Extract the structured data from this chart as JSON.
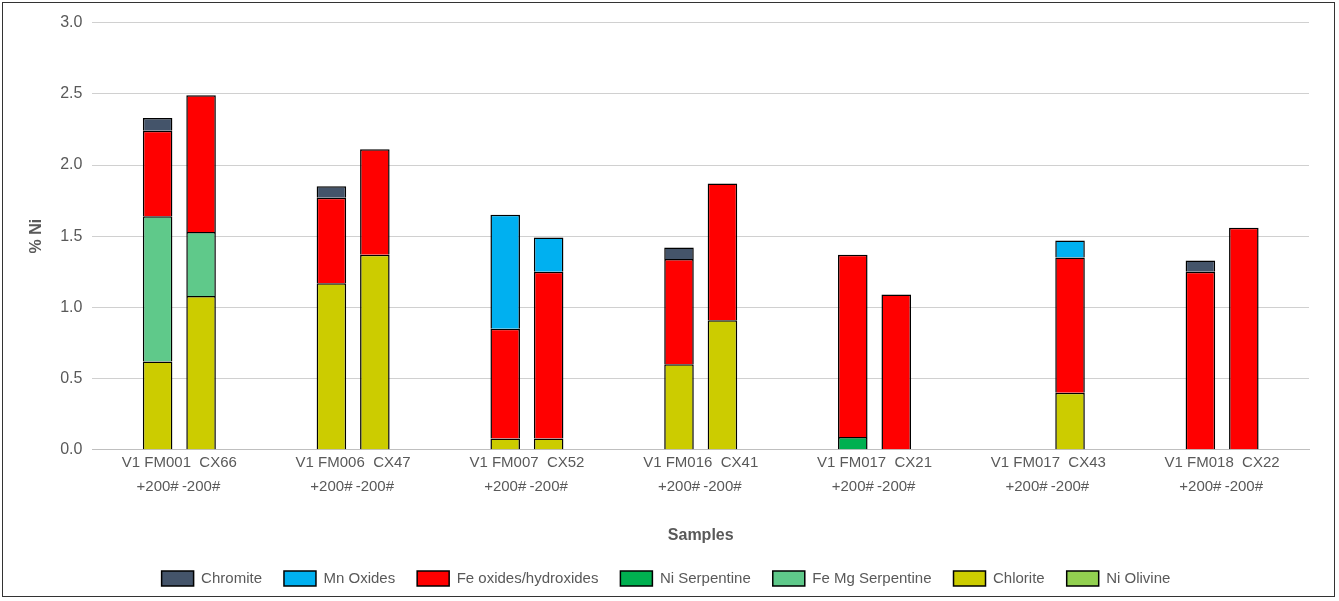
{
  "chart_data": {
    "type": "bar",
    "stacked": true,
    "xlabel": "Samples",
    "ylabel": "% Ni",
    "categories": [
      null,
      "+200#",
      "-200#",
      null,
      null,
      "+200#",
      "-200#",
      null,
      null,
      "+200#",
      "-200#",
      null,
      null,
      "+200#",
      "-200#",
      null,
      null,
      "+200#",
      "-200#",
      null,
      null,
      "+200#",
      "-200#",
      null,
      null,
      "+200#",
      "-200#",
      null
    ],
    "series": [
      {
        "name": "Ni Olivine",
        "color": "#92d050",
        "values": [
          null,
          null,
          null,
          null,
          null,
          null,
          null,
          null,
          null,
          null,
          null,
          null,
          null,
          null,
          null,
          null,
          null,
          null,
          null,
          null,
          null,
          null,
          null,
          null,
          null,
          null,
          null,
          null
        ]
      },
      {
        "name": "Chlorite",
        "color": "#cccc00",
        "values": [
          null,
          0.62,
          1.08,
          null,
          null,
          1.17,
          1.37,
          null,
          null,
          0.08,
          0.08,
          null,
          null,
          0.6,
          0.91,
          null,
          null,
          null,
          null,
          null,
          null,
          null,
          0.4,
          null,
          null,
          null,
          null,
          null
        ]
      },
      {
        "name": "Fe Mg Serpentine",
        "color": "#5fc98a",
        "values": [
          null,
          1.02,
          0.45,
          null,
          null,
          null,
          null,
          null,
          null,
          null,
          null,
          null,
          null,
          null,
          null,
          null,
          null,
          null,
          null,
          null,
          null,
          null,
          null,
          null,
          null,
          null,
          null,
          null
        ]
      },
      {
        "name": "Ni Serpentine",
        "color": "#00b050",
        "values": [
          null,
          null,
          null,
          null,
          null,
          null,
          null,
          null,
          null,
          null,
          null,
          null,
          null,
          null,
          null,
          null,
          null,
          0.09,
          null,
          null,
          null,
          null,
          null,
          null,
          null,
          null,
          null,
          null
        ]
      },
      {
        "name": "Fe oxides/hydroxides",
        "color": "#ff0000",
        "values": [
          null,
          0.6,
          0.96,
          null,
          null,
          0.6,
          0.74,
          null,
          null,
          0.77,
          1.17,
          null,
          null,
          0.74,
          0.96,
          null,
          null,
          1.28,
          1.09,
          null,
          null,
          null,
          0.95,
          null,
          null,
          1.25,
          1.56,
          null
        ]
      },
      {
        "name": "Mn Oxides",
        "color": "#00b0f0",
        "values": [
          null,
          null,
          null,
          null,
          null,
          null,
          null,
          null,
          null,
          0.8,
          0.24,
          null,
          null,
          null,
          null,
          null,
          null,
          null,
          null,
          null,
          null,
          null,
          0.12,
          null,
          null,
          null,
          null,
          null
        ]
      },
      {
        "name": "Chromite",
        "color": "#44546a",
        "values": [
          null,
          0.09,
          null,
          null,
          null,
          0.08,
          null,
          null,
          null,
          null,
          null,
          null,
          null,
          0.08,
          null,
          null,
          null,
          null,
          null,
          null,
          null,
          null,
          null,
          null,
          null,
          0.08,
          null,
          null
        ]
      }
    ],
    "annotations": [
      "V1 FM001  CX66",
      "V1 FM006  CX47",
      "V1 FM007  CX52",
      "V1 FM016  CX41",
      "V1 FM017  CX21",
      "V1 FM017  CX43",
      "V1 FM018  CX22"
    ],
    "ylim": [
      0,
      3
    ],
    "yticks": [
      {
        "value": 0,
        "label": "0.0"
      },
      {
        "value": 0.5,
        "label": "0.5"
      },
      {
        "value": 1,
        "label": "1.0"
      },
      {
        "value": 1.5,
        "label": "1.5"
      },
      {
        "value": 2,
        "label": "2.0"
      },
      {
        "value": 2.5,
        "label": "2.5"
      },
      {
        "value": 3,
        "label": "3.0"
      }
    ],
    "grid": "y",
    "legend": "bottom"
  }
}
